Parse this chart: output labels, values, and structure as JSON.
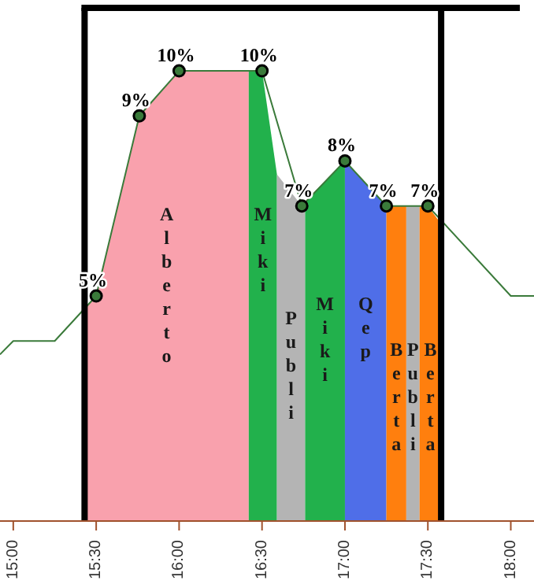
{
  "chart_data": {
    "type": "area",
    "xlim": [
      14.92,
      18.14
    ],
    "ylim": [
      0,
      11.4
    ],
    "xticks": [
      {
        "value": 15,
        "label": "15:00"
      },
      {
        "value": 15.5,
        "label": "15:30"
      },
      {
        "value": 16,
        "label": "16:00"
      },
      {
        "value": 16.5,
        "label": "16:30"
      },
      {
        "value": 17,
        "label": "17:00"
      },
      {
        "value": 17.5,
        "label": "17:30"
      },
      {
        "value": 18,
        "label": "18:00"
      }
    ],
    "tick_labels": "x",
    "grid": false,
    "legend": false,
    "ref_lines": [
      {
        "axis": "x",
        "value": 15.43,
        "color": "#000000"
      },
      {
        "axis": "x",
        "value": 17.58,
        "color": "#000000"
      }
    ],
    "series": [
      {
        "name": "Alberto",
        "color": "#f9a1ad",
        "x": [
          15.43,
          15.5,
          15.76,
          16.0,
          16.42
        ],
        "values": [
          4.7,
          5,
          9,
          10,
          10
        ]
      },
      {
        "name": "Miki",
        "color": "#22b14c",
        "x": [
          16.42,
          16.5,
          16.59
        ],
        "values": [
          10,
          10,
          7.7
        ]
      },
      {
        "name": "Publi",
        "color": "#b4b4b4",
        "x": [
          16.59,
          16.74,
          16.76
        ],
        "values": [
          7.7,
          7,
          7.1
        ]
      },
      {
        "name": "Miki",
        "color": "#22b14c",
        "x": [
          16.76,
          17.0
        ],
        "values": [
          7.1,
          8
        ]
      },
      {
        "name": "Qep",
        "color": "#4f6ee8",
        "x": [
          17.0,
          17.25
        ],
        "values": [
          8,
          7
        ]
      },
      {
        "name": "Berta",
        "color": "#ff7f0e",
        "x": [
          17.25,
          17.37
        ],
        "values": [
          7,
          7
        ]
      },
      {
        "name": "Publi",
        "color": "#b4b4b4",
        "x": [
          17.37,
          17.45
        ],
        "values": [
          7,
          7
        ]
      },
      {
        "name": "Berta",
        "color": "#ff7f0e",
        "x": [
          17.45,
          17.5,
          17.58
        ],
        "values": [
          7,
          7,
          6.6
        ]
      },
      {
        "type": "line",
        "color": "#3a7a3a",
        "x": [
          14.92,
          15.0,
          15.25,
          15.5
        ],
        "values": [
          3.7,
          4,
          4,
          5
        ]
      },
      {
        "type": "line",
        "color": "#3a7a3a",
        "marker": "circle",
        "x": [
          15.5,
          15.76,
          16.0,
          16.5,
          16.74,
          17.0,
          17.25,
          17.5
        ],
        "values": [
          5,
          9,
          10,
          10,
          7,
          8,
          7,
          7
        ],
        "value_labels": [
          "5%",
          "9%",
          "10%",
          "10%",
          "7%",
          "8%",
          "7%",
          "7%"
        ]
      },
      {
        "type": "line",
        "color": "#3a7a3a",
        "x": [
          17.5,
          18.0,
          18.14
        ],
        "values": [
          7,
          5,
          5
        ]
      }
    ]
  }
}
